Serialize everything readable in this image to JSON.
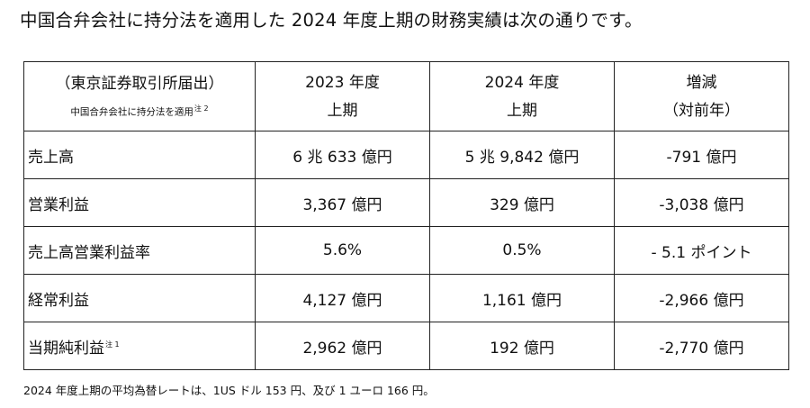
{
  "heading": "中国合弁会社に持分法を適用した 2024 年度上期の財務実績は次の通りです。",
  "table": {
    "headers": {
      "col0_main": "（東京証券取引所届出）",
      "col0_note": "中国合弁会社に持分法を適用",
      "col0_note_ref": "注 2",
      "col1_main": "2023 年度",
      "col1_sub": "上期",
      "col2_main": "2024 年度",
      "col2_sub": "上期",
      "col3_main": "増減",
      "col3_sub": "（対前年）"
    },
    "rows": [
      {
        "label": "売上高",
        "note": "",
        "fy2023": "6 兆 633 億円",
        "fy2024": "5 兆 9,842 億円",
        "change": "-791 億円"
      },
      {
        "label": "営業利益",
        "note": "",
        "fy2023": "3,367 億円",
        "fy2024": "329 億円",
        "change": "-3,038 億円"
      },
      {
        "label": "売上高営業利益率",
        "note": "",
        "fy2023": "5.6%",
        "fy2024": "0.5%",
        "change": "- 5.1 ポイント"
      },
      {
        "label": "経常利益",
        "note": "",
        "fy2023": "4,127 億円",
        "fy2024": "1,161 億円",
        "change": "-2,966 億円"
      },
      {
        "label": "当期純利益",
        "note": "注 1",
        "fy2023": "2,962 億円",
        "fy2024": "192 億円",
        "change": "-2,770 億円"
      }
    ]
  },
  "footnote": "2024 年度上期の平均為替レートは、1US ドル 153 円、及び 1 ユーロ 166 円。"
}
